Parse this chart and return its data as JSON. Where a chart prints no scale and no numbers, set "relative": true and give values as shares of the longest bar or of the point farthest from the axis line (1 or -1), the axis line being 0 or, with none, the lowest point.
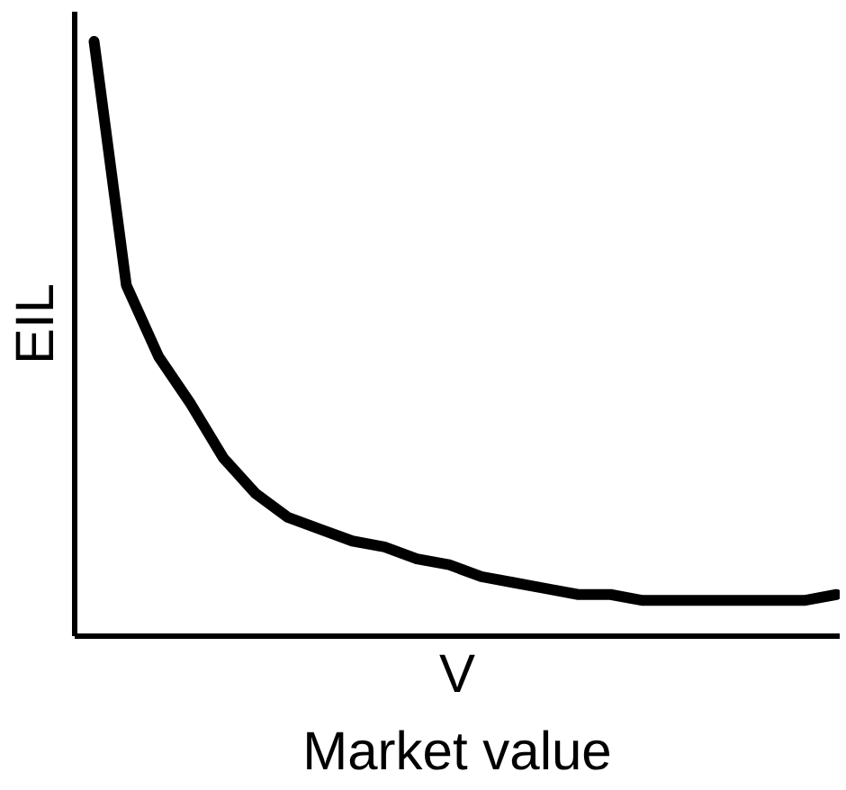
{
  "chart_data": {
    "type": "line",
    "relative": true,
    "xlabel": "V",
    "ylabel": "EIL",
    "annotations": [
      "Market value"
    ],
    "categories": [
      null,
      null,
      null,
      null,
      null,
      null,
      null,
      null,
      null,
      null,
      null,
      null,
      null,
      null,
      null,
      null,
      null,
      null,
      null,
      null,
      null,
      null,
      null,
      null
    ],
    "series": [
      {
        "color": "#000000",
        "values": [
          1,
          0.59,
          0.47,
          0.39,
          0.3,
          0.24,
          0.2,
          0.18,
          0.16,
          0.15,
          0.13,
          0.12,
          0.1,
          0.09,
          0.08,
          0.07,
          0.07,
          0.06,
          0.06,
          0.06,
          0.06,
          0.06,
          0.06,
          0.07
        ]
      }
    ],
    "marker": "none",
    "line_style": "solid"
  }
}
